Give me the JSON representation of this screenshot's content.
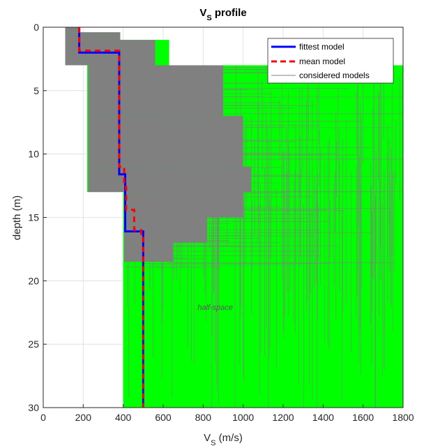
{
  "chart_data": {
    "type": "line",
    "title_main": "V",
    "title_sub": "S",
    "title_rest": " profile",
    "xlabel_main": "V",
    "xlabel_sub": "S",
    "xlabel_rest": " (m/s)",
    "ylabel": "depth (m)",
    "xlim": [
      0,
      1800
    ],
    "ylim": [
      0,
      30
    ],
    "y_reversed": true,
    "xticks": [
      0,
      200,
      400,
      600,
      800,
      1000,
      1200,
      1400,
      1600,
      1800
    ],
    "yticks": [
      0,
      5,
      10,
      15,
      20,
      25,
      30
    ],
    "grid": true,
    "legend_position": "top-right",
    "annotation": {
      "text": "half-space",
      "x": 1000,
      "y": 22.3
    },
    "colors": {
      "fittest": "#0000ff",
      "mean": "#ff0000",
      "considered": "#808080",
      "range": "#00ff00",
      "grid": "#dcdcdc",
      "axis": "#262626"
    },
    "series": [
      {
        "name": "fittest model",
        "style": "solid",
        "x": [
          180,
          180,
          380,
          380,
          410,
          410,
          500,
          500
        ],
        "y": [
          0,
          2.0,
          2.0,
          11.6,
          11.6,
          16.1,
          16.1,
          30
        ]
      },
      {
        "name": "mean model",
        "style": "dashed",
        "x": [
          180,
          180,
          280,
          380,
          380,
          405,
          405,
          415,
          415,
          455,
          455,
          490,
          490,
          500,
          500
        ],
        "y": [
          0,
          1.85,
          1.85,
          1.85,
          11.0,
          11.0,
          12.6,
          12.6,
          14.4,
          14.4,
          16.0,
          16.0,
          16.3,
          16.3,
          30
        ]
      },
      {
        "name": "considered models",
        "style": "solid",
        "x_range_by_depth": [
          {
            "depth_from": 0,
            "depth_to": 0.4,
            "vs_min": 110,
            "vs_max": 175
          },
          {
            "depth_from": 0.4,
            "depth_to": 1.0,
            "vs_min": 110,
            "vs_max": 385
          },
          {
            "depth_from": 1.0,
            "depth_to": 3.0,
            "vs_min": 110,
            "vs_max": 630
          },
          {
            "depth_from": 3.0,
            "depth_to": 13.0,
            "vs_min": 220,
            "vs_max": 1800
          },
          {
            "depth_from": 13.0,
            "depth_to": 30,
            "vs_min": 400,
            "vs_max": 1800
          }
        ]
      }
    ]
  }
}
